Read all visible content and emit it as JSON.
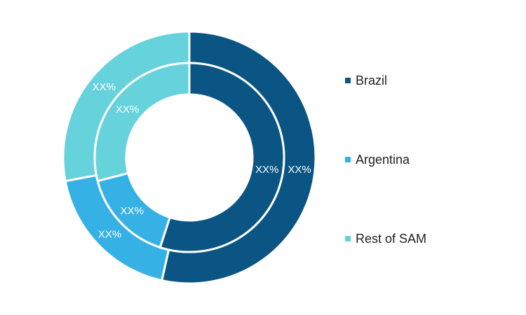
{
  "chart_data": {
    "type": "pie",
    "title": "",
    "categories": [
      "Brazil",
      "Argentina",
      "Rest of SAM"
    ],
    "colors": [
      "#0b5584",
      "#36b1e5",
      "#66d2dc"
    ],
    "series": [
      {
        "ring": "outer",
        "values": [
          0.535,
          0.185,
          0.28
        ],
        "labels": [
          "XX%",
          "XX%",
          "XX%"
        ]
      },
      {
        "ring": "inner",
        "values": [
          0.55,
          0.16,
          0.29
        ],
        "labels": [
          "XX%",
          "XX%",
          "XX%"
        ]
      }
    ],
    "legend": {
      "position": "right",
      "entries": [
        "Brazil",
        "Argentina",
        "Rest of SAM"
      ]
    }
  }
}
